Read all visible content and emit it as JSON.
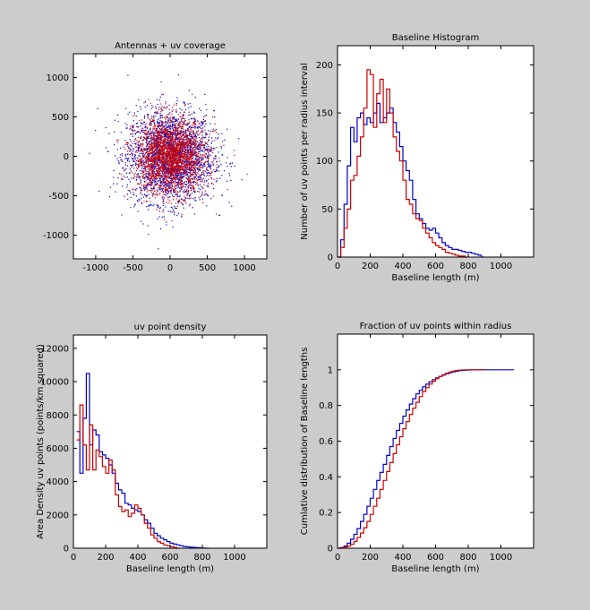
{
  "colors": {
    "background": "#cccccc",
    "axes_bg": "#ffffff",
    "series_blue": "#0000cc",
    "series_red": "#cc0000"
  },
  "chart_data": [
    {
      "id": "scatter",
      "type": "scatter",
      "title": "Antennas + uv coverage",
      "xlabel": "",
      "ylabel": "",
      "xlim": [
        -1300,
        1300
      ],
      "ylim": [
        -1300,
        1300
      ],
      "xticks": [
        -1000,
        -500,
        0,
        500,
        1000
      ],
      "yticks": [
        -1000,
        -500,
        0,
        500,
        1000
      ],
      "grid": false,
      "series": [
        {
          "color": "#0000cc",
          "count": 2500,
          "distribution": "gaussian",
          "center": [
            0,
            0
          ],
          "sigma": 290
        },
        {
          "color": "#cc0000",
          "count": 2500,
          "distribution": "gaussian",
          "center": [
            0,
            0
          ],
          "sigma": 240
        }
      ]
    },
    {
      "id": "histogram",
      "type": "line",
      "title": "Baseline Histogram",
      "xlabel": "Baseline length (m)",
      "ylabel": "Number of uv points  per radius interval",
      "xlim": [
        0,
        1200
      ],
      "ylim": [
        0,
        220
      ],
      "xticks": [
        0,
        200,
        400,
        600,
        800,
        1000
      ],
      "yticks": [
        0,
        50,
        100,
        150,
        200
      ],
      "grid": false,
      "step": 20,
      "series": [
        {
          "color": "#0000cc",
          "x_start": 0,
          "values": [
            0,
            18,
            55,
            95,
            135,
            120,
            145,
            150,
            138,
            145,
            140,
            150,
            160,
            140,
            145,
            150,
            155,
            140,
            130,
            115,
            100,
            90,
            80,
            60,
            45,
            40,
            35,
            30,
            28,
            30,
            25,
            20,
            15,
            12,
            10,
            8,
            8,
            7,
            6,
            5,
            5,
            4,
            3,
            2,
            0
          ]
        },
        {
          "color": "#cc0000",
          "x_start": 0,
          "values": [
            0,
            10,
            30,
            50,
            80,
            85,
            105,
            125,
            155,
            195,
            190,
            135,
            170,
            185,
            140,
            175,
            150,
            125,
            110,
            100,
            80,
            60,
            55,
            45,
            40,
            38,
            30,
            25,
            20,
            15,
            12,
            10,
            8,
            5,
            4,
            3,
            2,
            1,
            1,
            0
          ]
        }
      ]
    },
    {
      "id": "density",
      "type": "line",
      "title": "uv point density",
      "xlabel": "Baseline length (m)",
      "ylabel": "Area Density uv points (points/km squared)",
      "xlim": [
        0,
        1200
      ],
      "ylim": [
        0,
        12800
      ],
      "xticks": [
        0,
        200,
        400,
        600,
        800,
        1000
      ],
      "yticks": [
        0,
        2000,
        4000,
        6000,
        8000,
        10000,
        12000
      ],
      "grid": false,
      "step": 20,
      "series": [
        {
          "color": "#0000cc",
          "x_start": 20,
          "values": [
            7000,
            4500,
            7800,
            10500,
            6200,
            7100,
            6800,
            5800,
            5600,
            5400,
            5000,
            4500,
            3900,
            3500,
            3300,
            2700,
            2600,
            2400,
            2300,
            2200,
            2000,
            1700,
            1500,
            1200,
            900,
            750,
            600,
            500,
            400,
            300,
            250,
            200,
            150,
            100,
            80,
            60,
            50,
            30,
            20,
            10,
            0
          ]
        },
        {
          "color": "#cc0000",
          "x_start": 20,
          "values": [
            6500,
            8600,
            6200,
            4700,
            7400,
            4700,
            5900,
            5500,
            4900,
            4500,
            5300,
            4700,
            3200,
            2500,
            2200,
            2300,
            1900,
            2100,
            2600,
            2400,
            2000,
            1500,
            1200,
            800,
            600,
            400,
            300,
            200,
            150,
            100,
            50,
            0
          ]
        }
      ]
    },
    {
      "id": "cumulative",
      "type": "line",
      "title": "Fraction of uv points within radius",
      "xlabel": "Baseline length (m)",
      "ylabel": "Cumlative distribution of Baseline lengths",
      "xlim": [
        0,
        1200
      ],
      "ylim": [
        0,
        1.2
      ],
      "xticks": [
        0,
        200,
        400,
        600,
        800,
        1000
      ],
      "yticks": [
        0,
        0.2,
        0.4,
        0.6,
        0.8,
        1
      ],
      "ytick_labels": [
        "0",
        "0.2",
        "0.4",
        "0.6",
        "0.8",
        "1"
      ],
      "grid": false,
      "step": 20,
      "series": [
        {
          "color": "#0000cc",
          "x_start": 0,
          "values": [
            0,
            0.004,
            0.012,
            0.028,
            0.05,
            0.078,
            0.11,
            0.15,
            0.19,
            0.235,
            0.28,
            0.33,
            0.38,
            0.425,
            0.47,
            0.52,
            0.57,
            0.615,
            0.66,
            0.7,
            0.74,
            0.775,
            0.808,
            0.838,
            0.865,
            0.885,
            0.905,
            0.92,
            0.933,
            0.945,
            0.955,
            0.963,
            0.97,
            0.977,
            0.983,
            0.988,
            0.992,
            0.995,
            0.997,
            0.998,
            0.999,
            0.9995,
            1.0,
            1.0,
            1.0,
            1.0,
            1.0,
            1.0,
            1.0,
            1.0,
            1.0,
            1.0,
            1.0,
            1.0
          ]
        },
        {
          "color": "#cc0000",
          "x_start": 0,
          "values": [
            0,
            0.002,
            0.006,
            0.012,
            0.022,
            0.038,
            0.06,
            0.085,
            0.115,
            0.15,
            0.19,
            0.235,
            0.28,
            0.33,
            0.38,
            0.43,
            0.48,
            0.53,
            0.58,
            0.625,
            0.67,
            0.71,
            0.75,
            0.785,
            0.818,
            0.85,
            0.878,
            0.9,
            0.92,
            0.936,
            0.95,
            0.962,
            0.972,
            0.98,
            0.987,
            0.992,
            0.996,
            0.998,
            0.999,
            1.0,
            1.0,
            1.0,
            1.0,
            1.0,
            1.0
          ]
        }
      ]
    }
  ]
}
